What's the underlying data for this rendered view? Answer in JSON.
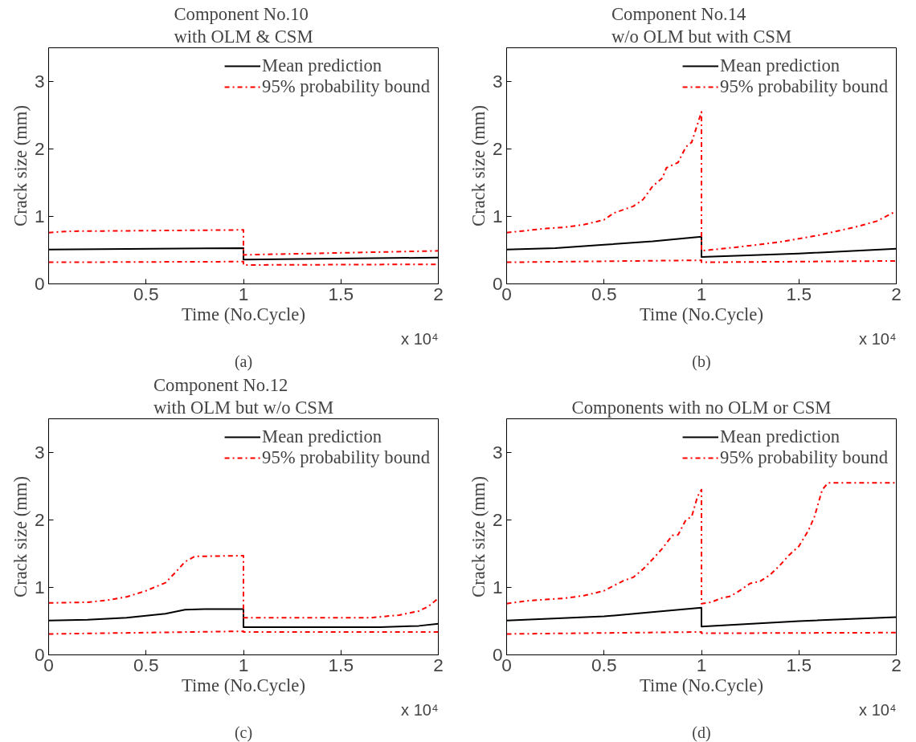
{
  "chart_data": [
    {
      "type": "line",
      "title": "Component No.10\nwith OLM & CSM",
      "xlabel": "Time (No.Cycle)",
      "ylabel": "Crack size (mm)",
      "xlim": [
        0,
        2
      ],
      "ylim": [
        0,
        3.5
      ],
      "xticks": [
        0.5,
        1,
        1.5,
        2
      ],
      "yticks": [
        0,
        1,
        2,
        3
      ],
      "legend": "top right",
      "annotations": [
        "x 10⁴",
        "(a)"
      ],
      "series": [
        {
          "name": "Mean prediction",
          "color": "#000000",
          "line_style": "solid",
          "x": [
            0,
            1,
            1,
            2
          ],
          "values": [
            0.51,
            0.53,
            0.36,
            0.39
          ]
        },
        {
          "name": "95% probability bound",
          "color": "#ff0000",
          "line_style": "dashdot",
          "x": [
            0,
            0.1,
            1,
            1,
            1.5,
            2
          ],
          "values": [
            0.76,
            0.78,
            0.8,
            0.43,
            0.46,
            0.49
          ]
        },
        {
          "color": "#ff0000",
          "line_style": "dashdot",
          "x": [
            0,
            1,
            1,
            2
          ],
          "values": [
            0.32,
            0.33,
            0.28,
            0.29
          ]
        }
      ]
    },
    {
      "type": "line",
      "title": "Component No.14\nw/o OLM but with CSM",
      "xlabel": "Time (No.Cycle)",
      "ylabel": "Crack size (mm)",
      "xlim": [
        0,
        2
      ],
      "ylim": [
        0,
        3.5
      ],
      "xticks": [
        0,
        0.5,
        1,
        1.5,
        2
      ],
      "yticks": [
        0,
        1,
        2,
        3
      ],
      "legend": "top right",
      "annotations": [
        "x 10⁴",
        "(b)"
      ],
      "series": [
        {
          "name": "Mean prediction",
          "color": "#000000",
          "line_style": "solid",
          "x": [
            0,
            0.25,
            0.5,
            0.75,
            1,
            1,
            1.5,
            2
          ],
          "values": [
            0.51,
            0.53,
            0.58,
            0.63,
            0.7,
            0.4,
            0.45,
            0.52
          ]
        },
        {
          "name": "95% probability bound",
          "color": "#ff0000",
          "line_style": "dashdot",
          "x": [
            0,
            0.1,
            0.2,
            0.3,
            0.4,
            0.5,
            0.55,
            0.6,
            0.65,
            0.7,
            0.75,
            0.8,
            0.82,
            0.88,
            0.92,
            0.95,
            1,
            1,
            1.2,
            1.4,
            1.6,
            1.8,
            1.9,
            2
          ],
          "values": [
            0.76,
            0.79,
            0.82,
            0.84,
            0.88,
            0.95,
            1.05,
            1.1,
            1.15,
            1.25,
            1.45,
            1.57,
            1.72,
            1.8,
            2.03,
            2.1,
            2.55,
            0.49,
            0.55,
            0.62,
            0.72,
            0.85,
            0.93,
            1.08
          ]
        },
        {
          "color": "#ff0000",
          "line_style": "dashdot",
          "x": [
            0,
            1,
            1,
            2
          ],
          "values": [
            0.32,
            0.35,
            0.32,
            0.34
          ]
        }
      ]
    },
    {
      "type": "line",
      "title": "Component No.12\nwith OLM but w/o CSM",
      "xlabel": "Time (No.Cycle)",
      "ylabel": "Crack size (mm)",
      "xlim": [
        0,
        2
      ],
      "ylim": [
        0,
        3.5
      ],
      "xticks": [
        0,
        0.5,
        1,
        1.5,
        2
      ],
      "yticks": [
        0,
        1,
        2,
        3
      ],
      "legend": "top right",
      "annotations": [
        "x 10⁴",
        "(c)"
      ],
      "series": [
        {
          "name": "Mean prediction",
          "color": "#000000",
          "line_style": "solid",
          "x": [
            0,
            0.2,
            0.4,
            0.5,
            0.6,
            0.7,
            0.8,
            1,
            1,
            1.7,
            1.9,
            2
          ],
          "values": [
            0.51,
            0.52,
            0.55,
            0.58,
            0.61,
            0.67,
            0.68,
            0.68,
            0.41,
            0.41,
            0.43,
            0.46
          ]
        },
        {
          "name": "95% probability bound",
          "color": "#ff0000",
          "line_style": "dashdot",
          "x": [
            0,
            0.2,
            0.3,
            0.4,
            0.5,
            0.6,
            0.65,
            0.7,
            0.75,
            1,
            1,
            1.65,
            1.8,
            1.9,
            1.95,
            2
          ],
          "values": [
            0.77,
            0.78,
            0.81,
            0.86,
            0.95,
            1.07,
            1.22,
            1.38,
            1.46,
            1.47,
            0.55,
            0.55,
            0.59,
            0.65,
            0.72,
            0.84
          ]
        },
        {
          "color": "#ff0000",
          "line_style": "dashdot",
          "x": [
            0,
            0.5,
            1,
            1,
            2
          ],
          "values": [
            0.31,
            0.33,
            0.35,
            0.34,
            0.34
          ]
        }
      ]
    },
    {
      "type": "line",
      "title": "Components with no OLM or CSM",
      "xlabel": "Time (No.Cycle)",
      "ylabel": "Crack size (mm)",
      "xlim": [
        0,
        2
      ],
      "ylim": [
        0,
        3.5
      ],
      "xticks": [
        0,
        0.5,
        1,
        1.5,
        2
      ],
      "yticks": [
        0,
        1,
        2,
        3
      ],
      "legend": "top right",
      "annotations": [
        "x 10⁴",
        "(d)"
      ],
      "series": [
        {
          "name": "Mean prediction",
          "color": "#000000",
          "line_style": "solid",
          "x": [
            0,
            0.5,
            1,
            1,
            1.5,
            2
          ],
          "values": [
            0.51,
            0.57,
            0.7,
            0.42,
            0.5,
            0.56
          ]
        },
        {
          "name": "95% probability bound",
          "color": "#ff0000",
          "line_style": "dashdot",
          "x": [
            0,
            0.1,
            0.2,
            0.3,
            0.4,
            0.5,
            0.6,
            0.65,
            0.7,
            0.75,
            0.8,
            0.85,
            0.88,
            0.92,
            0.95,
            0.98,
            1,
            1,
            1.05,
            1.1,
            1.15,
            1.2,
            1.25,
            1.3,
            1.35,
            1.4,
            1.45,
            1.5,
            1.55,
            1.58,
            1.62,
            1.65,
            2
          ],
          "values": [
            0.76,
            0.8,
            0.82,
            0.84,
            0.88,
            0.95,
            1.1,
            1.15,
            1.27,
            1.42,
            1.58,
            1.77,
            1.78,
            2.0,
            2.05,
            2.35,
            2.45,
            0.76,
            0.78,
            0.84,
            0.87,
            0.96,
            1.06,
            1.09,
            1.18,
            1.32,
            1.48,
            1.61,
            1.85,
            2.05,
            2.45,
            2.55,
            2.55
          ]
        },
        {
          "color": "#ff0000",
          "line_style": "dashdot",
          "x": [
            0,
            1,
            1,
            2
          ],
          "values": [
            0.31,
            0.34,
            0.32,
            0.33
          ]
        }
      ]
    }
  ]
}
